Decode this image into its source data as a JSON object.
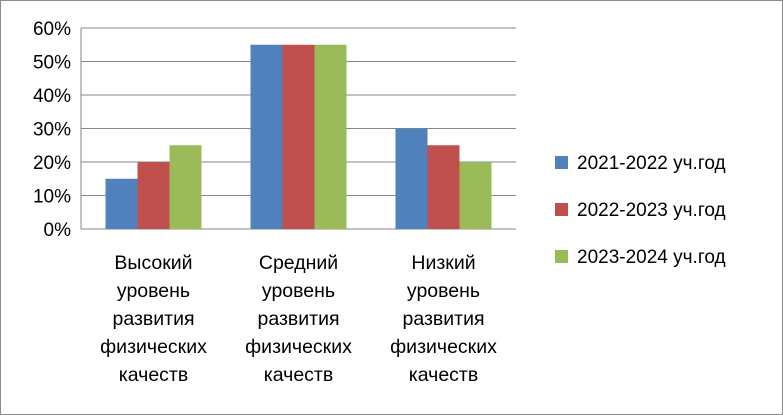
{
  "chart_data": {
    "type": "bar",
    "categories": [
      [
        "Высокий",
        "уровень",
        "развития",
        "физических",
        "качеств"
      ],
      [
        "Средний",
        "уровень",
        "развития",
        "физических",
        "качеств"
      ],
      [
        "Низкий",
        "уровень",
        "развития",
        "физических",
        "качеств"
      ]
    ],
    "series": [
      {
        "name": "2021-2022 уч.год",
        "color": "#4f81bd",
        "values": [
          15,
          55,
          30
        ]
      },
      {
        "name": "2022-2023 уч.год",
        "color": "#c0504d",
        "values": [
          20,
          55,
          25
        ]
      },
      {
        "name": "2023-2024 уч.год",
        "color": "#9bbb59",
        "values": [
          25,
          55,
          20
        ]
      }
    ],
    "ylim": [
      0,
      60
    ],
    "yticks": [
      0,
      10,
      20,
      30,
      40,
      50,
      60
    ],
    "ytick_labels": [
      "0%",
      "10%",
      "20%",
      "30%",
      "40%",
      "50%",
      "60%"
    ],
    "grid": true,
    "legend_position": "right",
    "xlabel": "",
    "ylabel": "",
    "title": ""
  }
}
